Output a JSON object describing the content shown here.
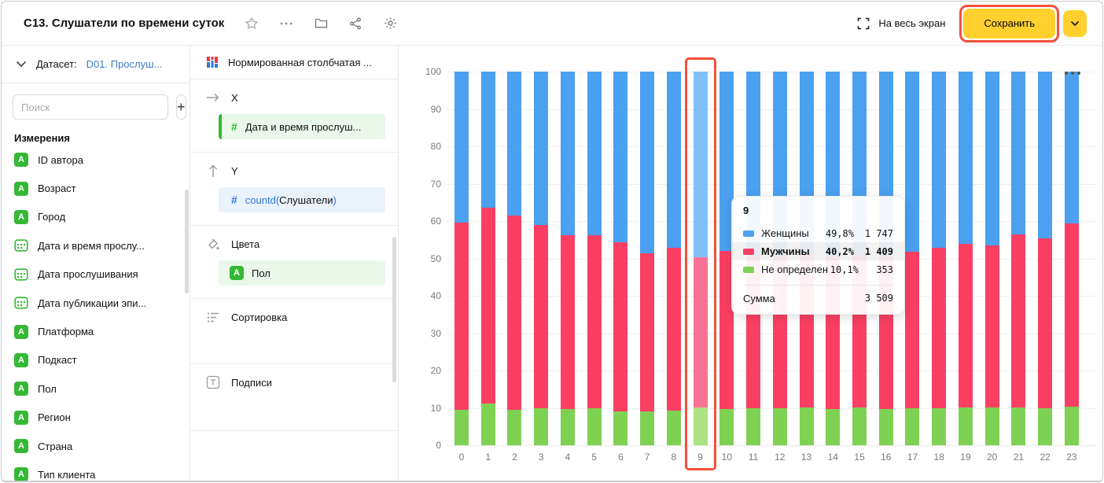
{
  "header": {
    "title": "C13. Слушатели по времени суток",
    "fullscreen_label": "На весь экран",
    "save_label": "Сохранить"
  },
  "sidebar": {
    "dataset_label": "Датасет:",
    "dataset_name": "D01. Прослуш...",
    "search_placeholder": "Поиск",
    "add_button_label": "+",
    "section_title": "Измерения",
    "string_badge": "A",
    "items": [
      {
        "label": "ID автора",
        "type": "string"
      },
      {
        "label": "Возраст",
        "type": "string"
      },
      {
        "label": "Город",
        "type": "string"
      },
      {
        "label": "Дата и время прослу...",
        "type": "date"
      },
      {
        "label": "Дата прослушивания",
        "type": "date"
      },
      {
        "label": "Дата публикации эпи...",
        "type": "date"
      },
      {
        "label": "Платформа",
        "type": "string"
      },
      {
        "label": "Подкаст",
        "type": "string"
      },
      {
        "label": "Пол",
        "type": "string"
      },
      {
        "label": "Регион",
        "type": "string"
      },
      {
        "label": "Страна",
        "type": "string"
      },
      {
        "label": "Тип клиента",
        "type": "string"
      }
    ]
  },
  "panel": {
    "visualization_name": "Нормированная столбчатая ...",
    "x_section": "X",
    "x_field": "Дата и время прослуш...",
    "x_field_hash": "#",
    "y_section": "Y",
    "y_field_prefix": "countd(",
    "y_field_name": "Слушатели",
    "y_field_suffix": ")",
    "y_field_hash": "#",
    "colors_section": "Цвета",
    "colors_field": "Пол",
    "colors_badge": "A",
    "sort_section": "Сортировка",
    "labels_section": "Подписи"
  },
  "colors": {
    "women_blue": "#4ba0f0",
    "men_pink": "#fa3f63",
    "unknown_green": "#7fd153",
    "women_blue_light": "#7fc0f9",
    "men_pink_light": "#fa7394",
    "unknown_green_light": "#abe381",
    "accent_yellow": "#ffd02e",
    "annotation_red": "#f4503a",
    "link_blue": "#3a7cc8",
    "field_green": "#35b835",
    "field_blue": "#2d7ae0"
  },
  "chart_data": {
    "type": "bar",
    "subtype": "normalized-stacked-column",
    "categories": [
      "0",
      "1",
      "2",
      "3",
      "4",
      "5",
      "6",
      "7",
      "8",
      "9",
      "10",
      "11",
      "12",
      "13",
      "14",
      "15",
      "16",
      "17",
      "18",
      "19",
      "20",
      "21",
      "22",
      "23"
    ],
    "series": [
      {
        "name": "Женщины",
        "color": "#4ba0f0",
        "values": [
          40.5,
          36.5,
          38.5,
          41.0,
          43.8,
          43.8,
          45.7,
          48.7,
          47.1,
          49.8,
          48.0,
          49.2,
          49.4,
          48.8,
          49.4,
          49.0,
          49.4,
          48.2,
          47.1,
          46.0,
          46.6,
          43.5,
          44.6,
          40.7
        ]
      },
      {
        "name": "Мужчины",
        "color": "#fa3f63",
        "values": [
          50.1,
          52.4,
          52.0,
          49.2,
          46.6,
          46.2,
          45.2,
          42.2,
          43.6,
          40.2,
          42.3,
          41.0,
          40.8,
          41.0,
          40.9,
          40.8,
          40.9,
          42.0,
          43.1,
          43.8,
          43.2,
          46.3,
          45.6,
          48.9
        ]
      },
      {
        "name": "Не определен",
        "color": "#7fd153",
        "values": [
          9.4,
          11.1,
          9.5,
          9.8,
          9.6,
          10.0,
          9.1,
          9.1,
          9.3,
          10.1,
          9.7,
          9.8,
          9.8,
          10.2,
          9.7,
          10.2,
          9.7,
          9.8,
          9.8,
          10.2,
          10.2,
          10.2,
          9.8,
          10.4
        ]
      }
    ],
    "yticks": [
      0,
      10,
      20,
      30,
      40,
      50,
      60,
      70,
      80,
      90,
      100
    ],
    "ylim": [
      0,
      100
    ],
    "xlabel": "",
    "ylabel": "",
    "grid": true,
    "legend_position": "none",
    "highlighted_category": "9"
  },
  "tooltip": {
    "title": "9",
    "rows": [
      {
        "name": "Женщины",
        "percent": "49,8%",
        "value": "1 747",
        "highlighted": false
      },
      {
        "name": "Мужчины",
        "percent": "40,2%",
        "value": "1 409",
        "highlighted": true
      },
      {
        "name": "Не определен",
        "percent": "10,1%",
        "value": "353",
        "highlighted": false
      }
    ],
    "total_label": "Сумма",
    "total_value": "3 509"
  }
}
